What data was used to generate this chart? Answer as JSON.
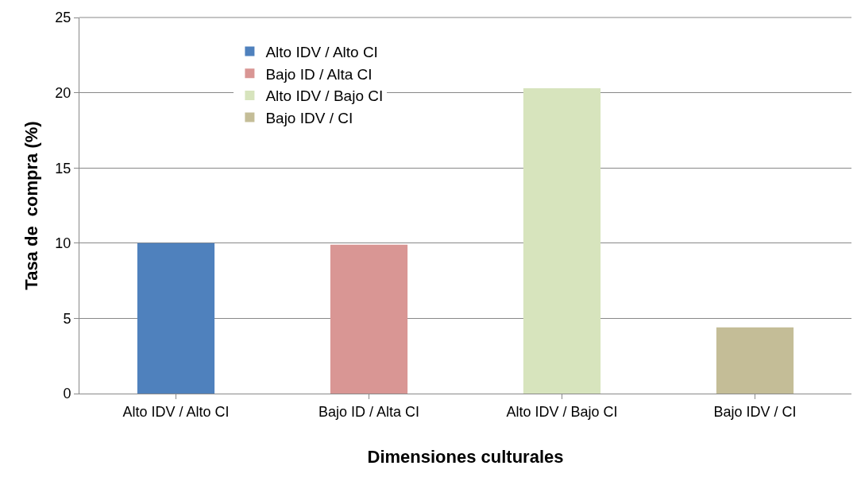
{
  "chart_data": {
    "type": "bar",
    "xlabel": "Dimensiones culturales",
    "ylabel": "Tasa de  compra (%)",
    "categories": [
      "Alto IDV / Alto CI",
      "Bajo ID / Alta CI",
      "Alto IDV / Bajo CI",
      "Bajo IDV / CI"
    ],
    "series": [
      {
        "name": "Alto IDV / Alto CI",
        "color": "#4f81bd",
        "values": [
          10.0,
          null,
          null,
          null
        ]
      },
      {
        "name": "Bajo ID / Alta CI",
        "color": "#d99694",
        "values": [
          null,
          9.9,
          null,
          null
        ]
      },
      {
        "name": "Alto IDV / Bajo CI",
        "color": "#d7e4bd",
        "values": [
          null,
          null,
          20.3,
          null
        ]
      },
      {
        "name": "Bajo IDV / CI",
        "color": "#c4bd97",
        "values": [
          null,
          null,
          null,
          4.4
        ]
      }
    ],
    "ylim": [
      0,
      25
    ],
    "yticks": [
      0,
      5,
      10,
      15,
      20,
      25
    ],
    "grid": "y",
    "legend": "top left"
  }
}
